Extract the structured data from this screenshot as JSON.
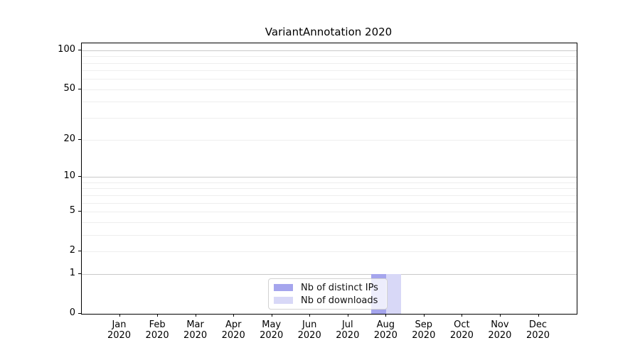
{
  "chart_data": {
    "type": "bar",
    "title": "VariantAnnotation 2020",
    "categories": [
      "Jan",
      "Feb",
      "Mar",
      "Apr",
      "May",
      "Jun",
      "Jul",
      "Aug",
      "Sep",
      "Oct",
      "Nov",
      "Dec"
    ],
    "x_sublabel": "2020",
    "series": [
      {
        "name": "Nb of distinct IPs",
        "color": "#a5a5ed",
        "values": [
          0,
          0,
          0,
          0,
          0,
          0,
          0,
          1,
          0,
          0,
          0,
          0
        ]
      },
      {
        "name": "Nb of downloads",
        "color": "#d8d8f7",
        "values": [
          0,
          0,
          0,
          0,
          0,
          0,
          0,
          1,
          0,
          0,
          0,
          0
        ]
      }
    ],
    "y_scale": "log1p",
    "ylim": [
      0,
      100
    ],
    "y_ticks": [
      100,
      50,
      20,
      10,
      5,
      2,
      1,
      0
    ],
    "y_major_grid": [
      1,
      10,
      100
    ],
    "y_minor_grid": [
      2,
      3,
      4,
      5,
      6,
      7,
      8,
      9,
      20,
      30,
      40,
      50,
      60,
      70,
      80,
      90
    ],
    "grid": "horizontal",
    "legend_position": "bottom-center",
    "colors": {
      "major_grid": "#c9c9c9",
      "minor_grid": "#eeeeee",
      "spine": "#000000",
      "text": "#000000"
    }
  }
}
